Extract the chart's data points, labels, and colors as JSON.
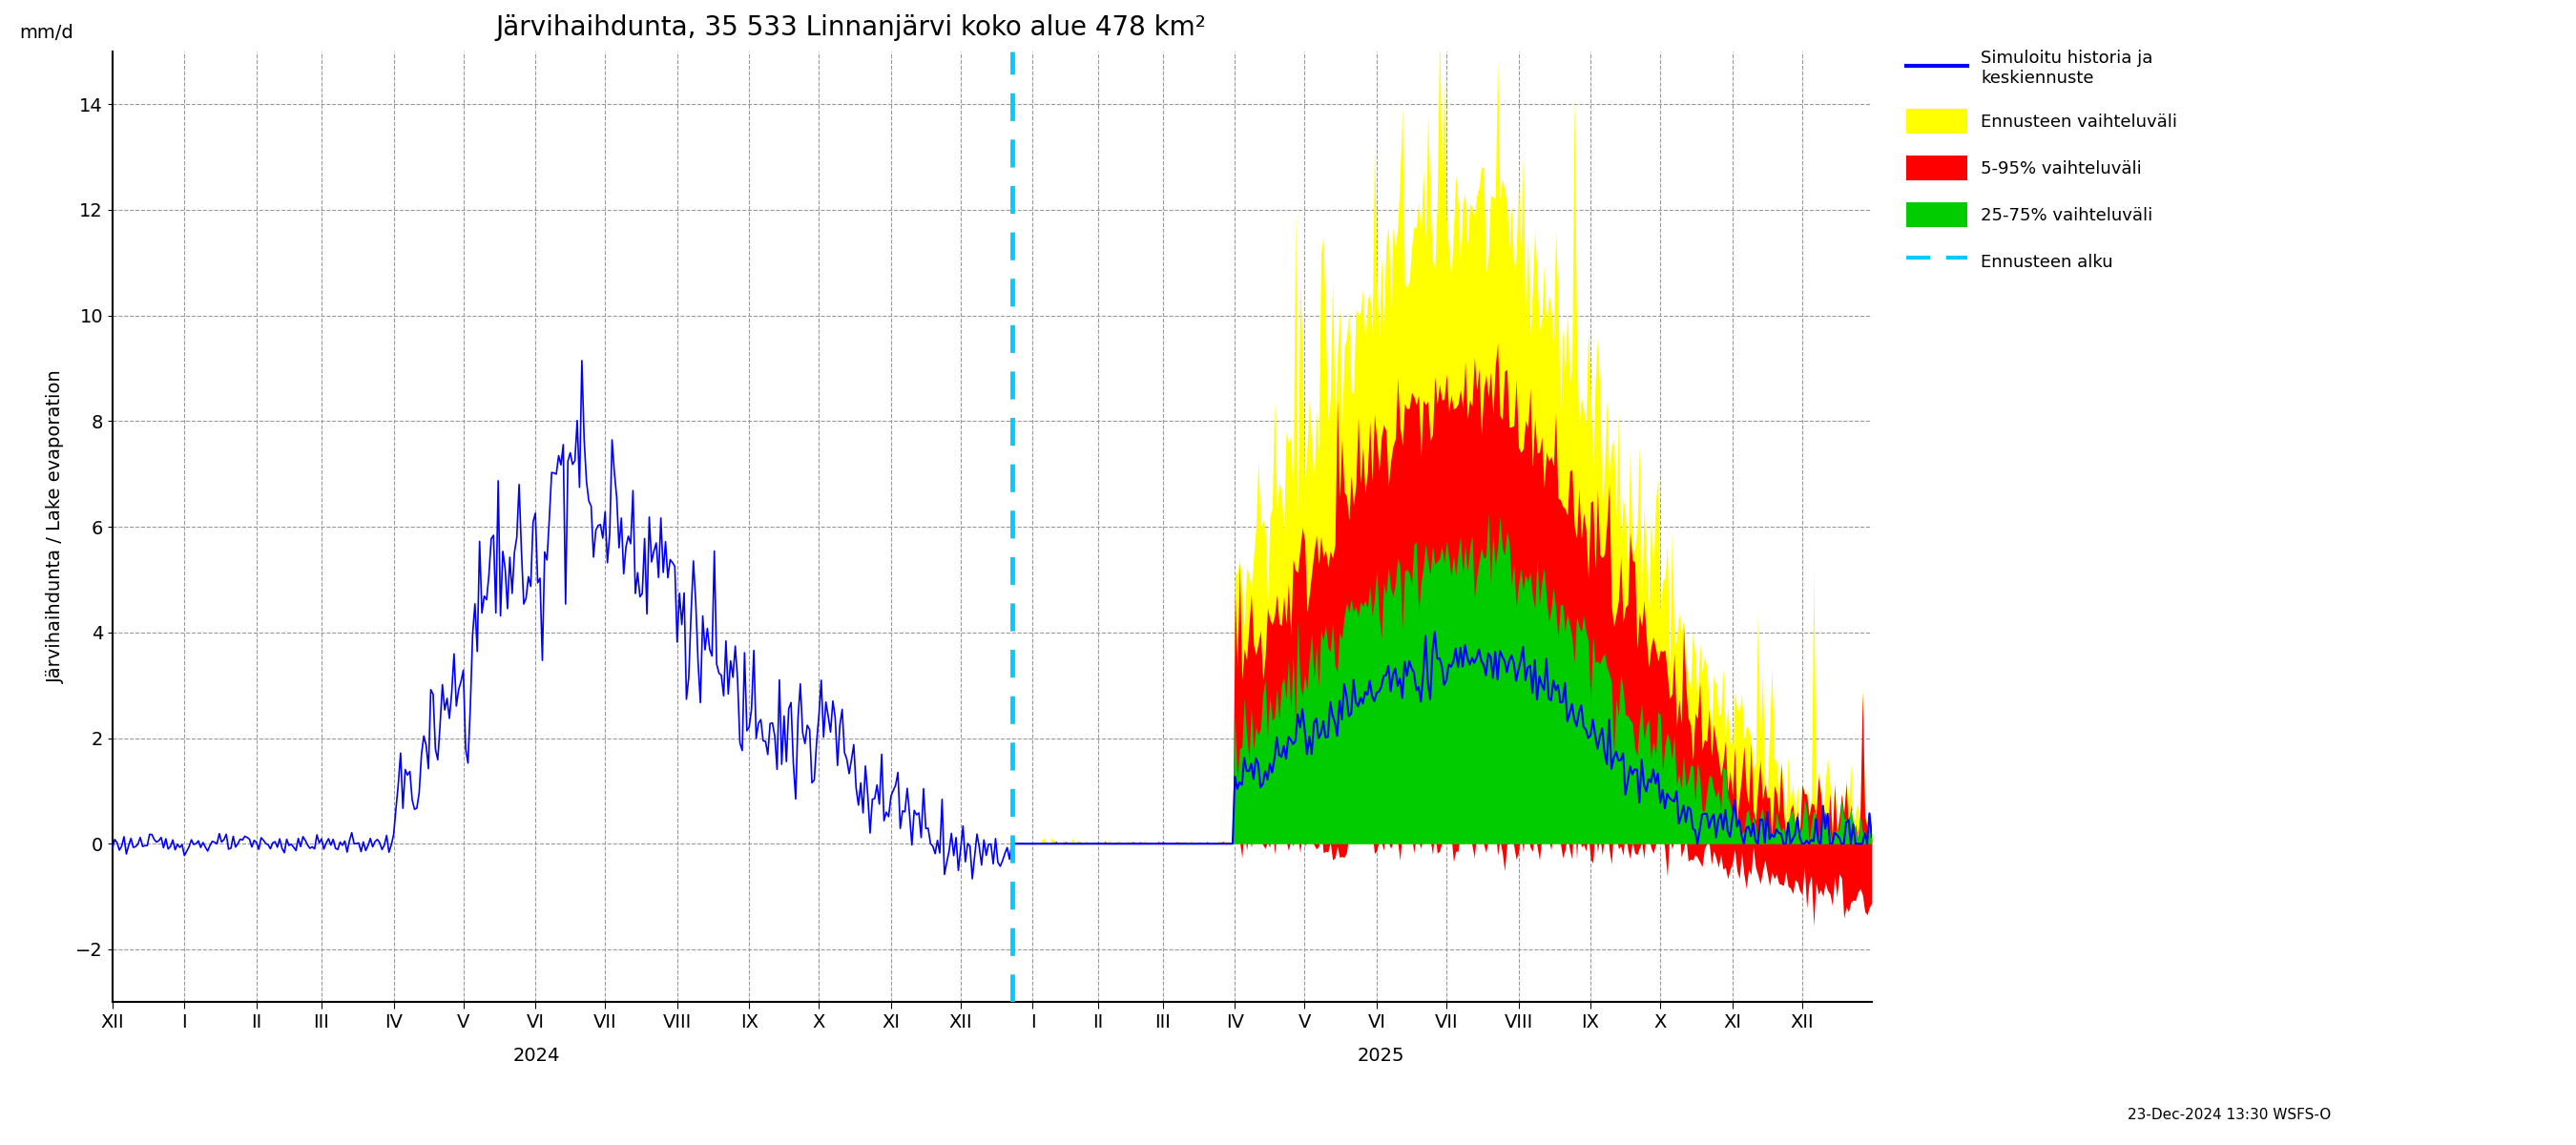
{
  "title": "Järvihaihdunta, 35 533 Linnanjärvi koko alue 478 km²",
  "ylabel_left": "Järvihaihdunta / Lake evaporation",
  "ylabel_right": "mm/d",
  "ylim": [
    -3,
    15
  ],
  "yticks": [
    -2,
    0,
    2,
    4,
    6,
    8,
    10,
    12,
    14
  ],
  "timestamp": "23-Dec-2024 13:30 WSFS-O",
  "legend_labels": [
    "Simuloitu historia ja\nkeskiennuste",
    "Ennusteen vaihteluväli",
    "5-95% vaihteluväli",
    "25-75% vaihteluväli",
    "Ennusteen alku"
  ],
  "history_color": "#0000ff",
  "yellow_color": "#ffff00",
  "red_color": "#ff0000",
  "green_color": "#00cc00",
  "cyan_color": "#00ccff",
  "background_color": "#ffffff",
  "grid_color": "#999999",
  "title_fontsize": 20,
  "label_fontsize": 14,
  "tick_fontsize": 14
}
